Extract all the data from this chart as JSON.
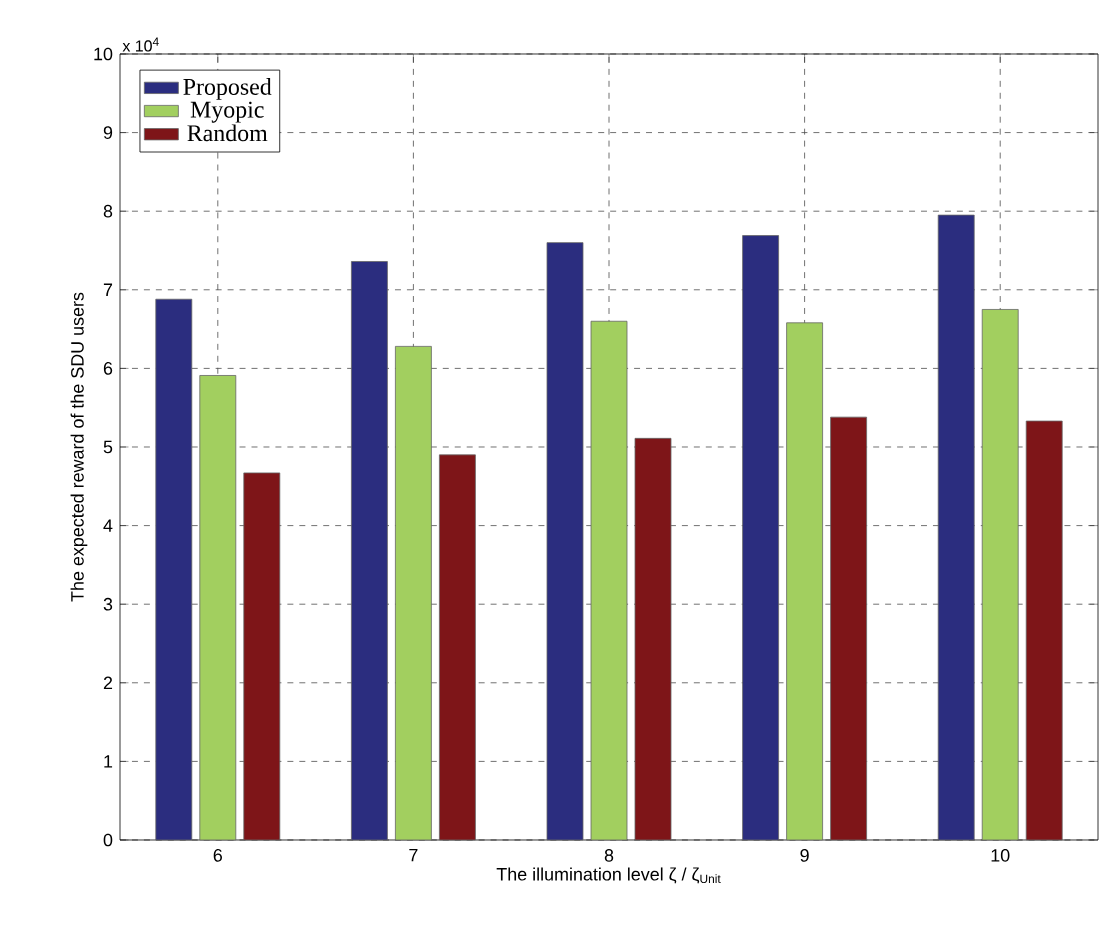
{
  "chart_data": {
    "type": "bar",
    "xlabel": "The illumination level ζ /  ζ$_{Unit}$",
    "ylabel": "The expected reward of the SDU users",
    "categories": [
      "6",
      "7",
      "8",
      "9",
      "10"
    ],
    "series": [
      {
        "name": "Proposed",
        "color": "#2b2d7f",
        "values": [
          6.88,
          7.36,
          7.6,
          7.69,
          7.95
        ]
      },
      {
        "name": "Myopic",
        "color": "#a2cf5f",
        "values": [
          5.91,
          6.28,
          6.6,
          6.58,
          6.75
        ]
      },
      {
        "name": "Random",
        "color": "#7e1518",
        "values": [
          4.67,
          4.9,
          5.11,
          5.38,
          5.33
        ]
      }
    ],
    "ylim": [
      0,
      10
    ],
    "yticks": [
      0,
      1,
      2,
      3,
      4,
      5,
      6,
      7,
      8,
      9,
      10
    ],
    "annotations": [
      "x 10$^{4}$"
    ],
    "grid": true,
    "legend": "top left"
  }
}
